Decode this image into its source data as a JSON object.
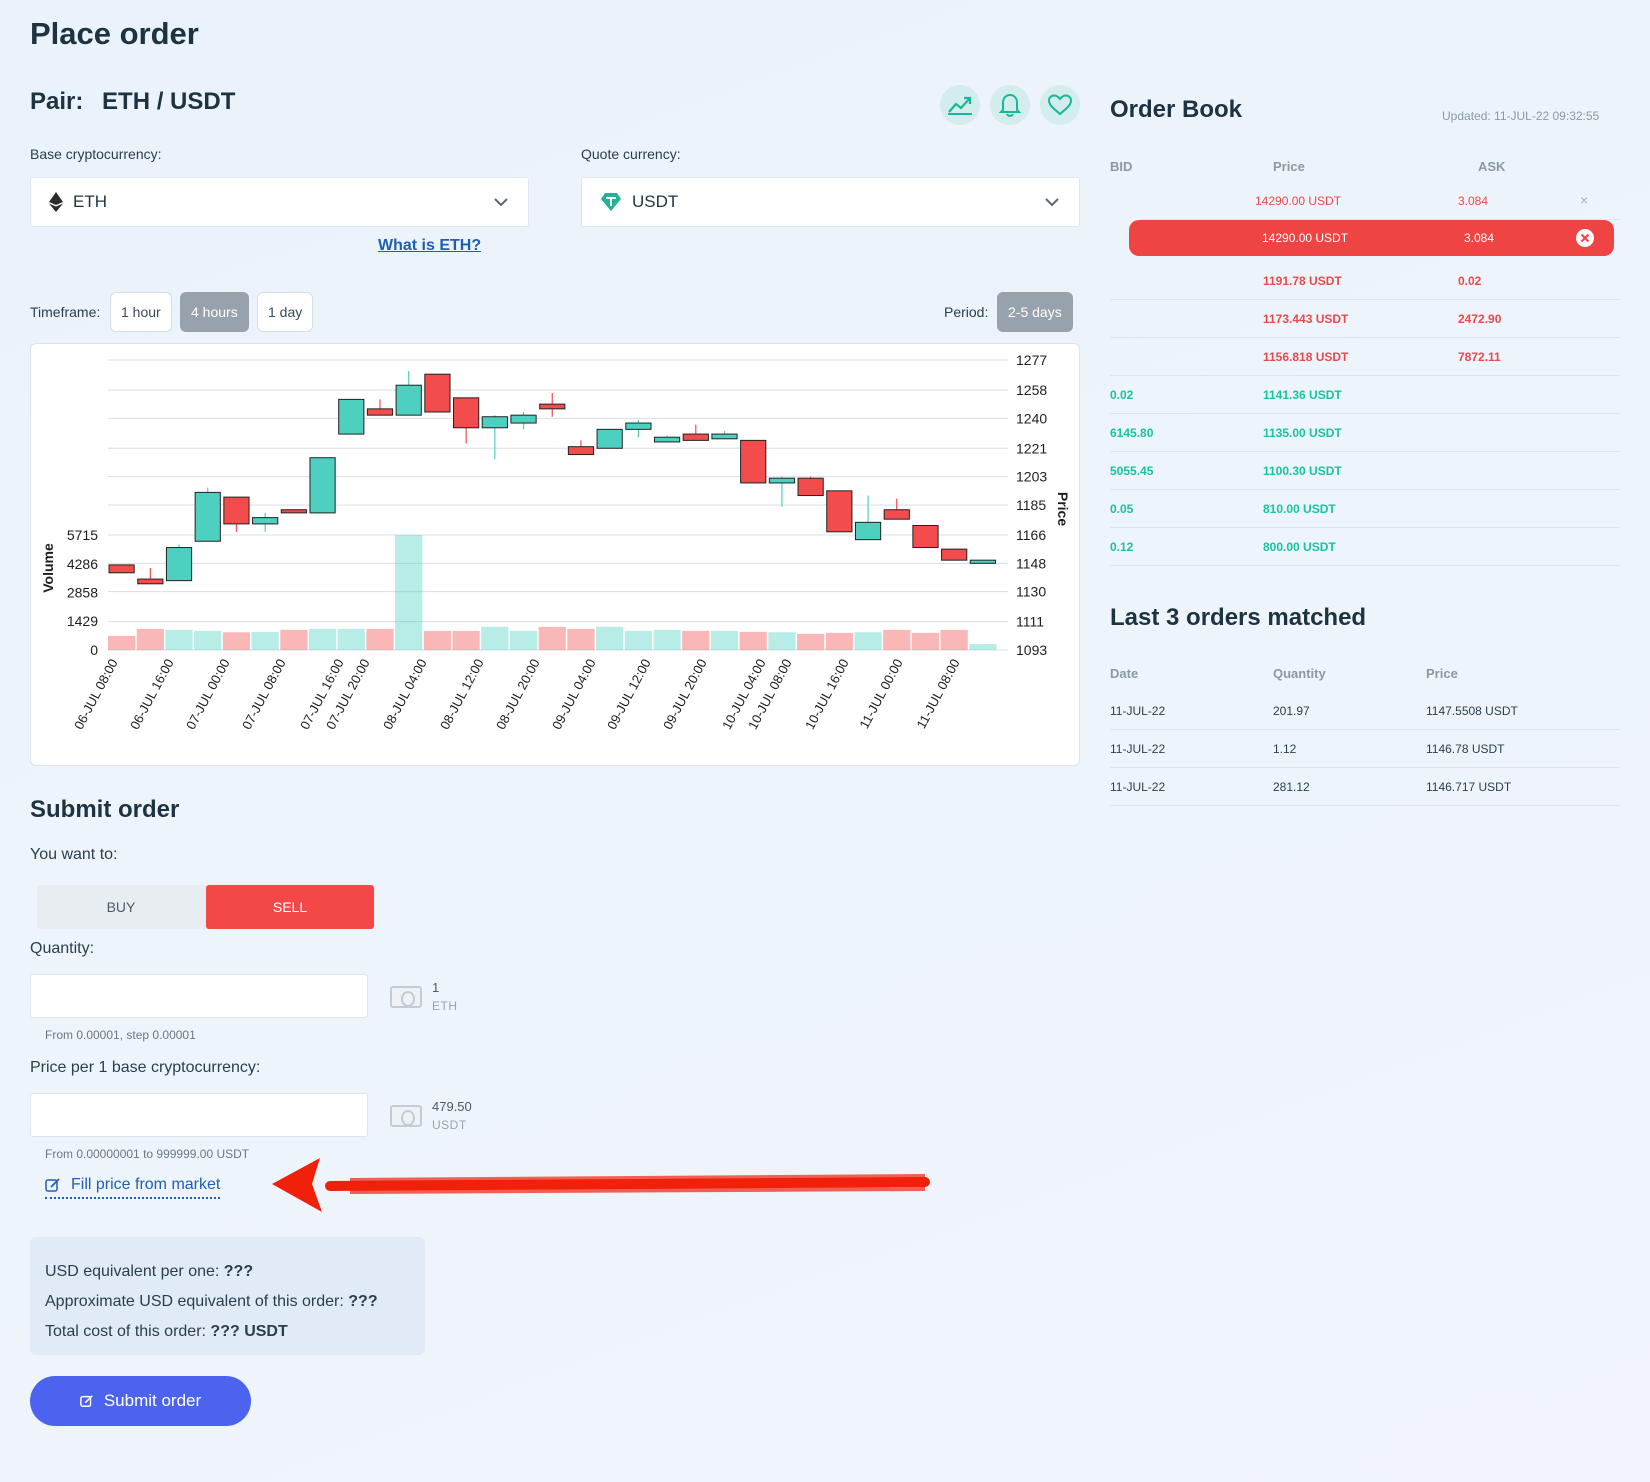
{
  "page": {
    "title": "Place order"
  },
  "pair": {
    "label": "Pair:",
    "value": "ETH / USDT"
  },
  "icons": {
    "chart": "chart-trend-icon",
    "alert": "bell-icon",
    "favorite": "heart-icon"
  },
  "base": {
    "label": "Base cryptocurrency:",
    "value": "ETH",
    "icon": "ethereum-icon",
    "info_link": "What is ETH?"
  },
  "quote": {
    "label": "Quote currency:",
    "value": "USDT",
    "icon": "tether-icon"
  },
  "timeframe": {
    "label": "Timeframe:",
    "options": [
      "1 hour",
      "4 hours",
      "1 day"
    ],
    "selected": "4 hours"
  },
  "period": {
    "label": "Period:",
    "value": "2-5 days"
  },
  "chart_data": {
    "type": "candlestick",
    "title": "",
    "xlabel": "",
    "ylabel_price": "Price",
    "ylabel_volume": "Volume",
    "price_ticks": [
      1277,
      1258,
      1240,
      1221,
      1203,
      1185,
      1166,
      1148,
      1130,
      1111,
      1093
    ],
    "volume_ticks": [
      5715,
      4286,
      2858,
      1429,
      0
    ],
    "ylim_price": [
      1093,
      1277
    ],
    "ylim_volume": [
      0,
      5715
    ],
    "x_tick_labels": [
      "06-JUL 08:00",
      "06-JUL 16:00",
      "07-JUL 00:00",
      "07-JUL 08:00",
      "07-JUL 16:00",
      "07-JUL 20:00",
      "08-JUL 04:00",
      "08-JUL 12:00",
      "08-JUL 20:00",
      "09-JUL 04:00",
      "09-JUL 12:00",
      "09-JUL 20:00",
      "10-JUL 04:00",
      "10-JUL 08:00",
      "10-JUL 16:00",
      "11-JUL 00:00",
      "11-JUL 08:00"
    ],
    "candles": [
      {
        "open": 1147,
        "close": 1142,
        "high": 1147,
        "low": 1142,
        "volume": 700,
        "dir": "down"
      },
      {
        "open": 1138,
        "close": 1135,
        "high": 1145,
        "low": 1135,
        "volume": 1050,
        "dir": "down"
      },
      {
        "open": 1137,
        "close": 1158,
        "high": 1160,
        "low": 1137,
        "volume": 1000,
        "dir": "up"
      },
      {
        "open": 1162,
        "close": 1193,
        "high": 1196,
        "low": 1162,
        "volume": 950,
        "dir": "up"
      },
      {
        "open": 1190,
        "close": 1173,
        "high": 1190,
        "low": 1168,
        "volume": 880,
        "dir": "down"
      },
      {
        "open": 1173,
        "close": 1177,
        "high": 1180,
        "low": 1168,
        "volume": 900,
        "dir": "up"
      },
      {
        "open": 1182,
        "close": 1180,
        "high": 1182,
        "low": 1180,
        "volume": 1000,
        "dir": "down"
      },
      {
        "open": 1180,
        "close": 1215,
        "high": 1215,
        "low": 1180,
        "volume": 1050,
        "dir": "up"
      },
      {
        "open": 1230,
        "close": 1252,
        "high": 1252,
        "low": 1230,
        "volume": 1050,
        "dir": "up"
      },
      {
        "open": 1246,
        "close": 1242,
        "high": 1252,
        "low": 1242,
        "volume": 1050,
        "dir": "down"
      },
      {
        "open": 1242,
        "close": 1261,
        "high": 1270,
        "low": 1242,
        "volume": 5715,
        "dir": "up"
      },
      {
        "open": 1268,
        "close": 1244,
        "high": 1268,
        "low": 1244,
        "volume": 950,
        "dir": "down"
      },
      {
        "open": 1253,
        "close": 1234,
        "high": 1253,
        "low": 1224,
        "volume": 950,
        "dir": "down"
      },
      {
        "open": 1234,
        "close": 1241,
        "high": 1242,
        "low": 1214,
        "volume": 1150,
        "dir": "up"
      },
      {
        "open": 1237,
        "close": 1242,
        "high": 1244,
        "low": 1233,
        "volume": 950,
        "dir": "up"
      },
      {
        "open": 1249,
        "close": 1246,
        "high": 1256,
        "low": 1241,
        "volume": 1150,
        "dir": "down"
      },
      {
        "open": 1222,
        "close": 1217,
        "high": 1226,
        "low": 1217,
        "volume": 1050,
        "dir": "down"
      },
      {
        "open": 1221,
        "close": 1233,
        "high": 1233,
        "low": 1221,
        "volume": 1150,
        "dir": "up"
      },
      {
        "open": 1233,
        "close": 1237,
        "high": 1239,
        "low": 1228,
        "volume": 950,
        "dir": "up"
      },
      {
        "open": 1225,
        "close": 1228,
        "high": 1229,
        "low": 1225,
        "volume": 1000,
        "dir": "up"
      },
      {
        "open": 1230,
        "close": 1226,
        "high": 1236,
        "low": 1226,
        "volume": 950,
        "dir": "down"
      },
      {
        "open": 1227,
        "close": 1230,
        "high": 1232,
        "low": 1227,
        "volume": 950,
        "dir": "up"
      },
      {
        "open": 1226,
        "close": 1199,
        "high": 1226,
        "low": 1199,
        "volume": 900,
        "dir": "down"
      },
      {
        "open": 1199,
        "close": 1202,
        "high": 1203,
        "low": 1184,
        "volume": 880,
        "dir": "up"
      },
      {
        "open": 1202,
        "close": 1191,
        "high": 1203,
        "low": 1191,
        "volume": 800,
        "dir": "down"
      },
      {
        "open": 1194,
        "close": 1168,
        "high": 1194,
        "low": 1168,
        "volume": 850,
        "dir": "down"
      },
      {
        "open": 1163,
        "close": 1174,
        "high": 1191,
        "low": 1163,
        "volume": 880,
        "dir": "up"
      },
      {
        "open": 1182,
        "close": 1176,
        "high": 1189,
        "low": 1176,
        "volume": 1000,
        "dir": "down"
      },
      {
        "open": 1172,
        "close": 1158,
        "high": 1172,
        "low": 1158,
        "volume": 850,
        "dir": "down"
      },
      {
        "open": 1157,
        "close": 1150,
        "high": 1157,
        "low": 1150,
        "volume": 1000,
        "dir": "down"
      },
      {
        "open": 1148,
        "close": 1150,
        "high": 1150,
        "low": 1148,
        "volume": 300,
        "dir": "up"
      }
    ]
  },
  "order_book": {
    "title": "Order Book",
    "updated": "Updated: 11-JUL-22 09:32:55",
    "headers": {
      "bid": "BID",
      "price": "Price",
      "ask": "ASK"
    },
    "highlight": {
      "price": "14290.00 USDT",
      "ask": "3.084"
    },
    "rows": [
      {
        "bid": "",
        "price": "14290.00 USDT",
        "ask": "3.084",
        "side": "ask",
        "closable": true
      },
      {
        "bid": "",
        "price": "1191.78 USDT",
        "ask": "0.02",
        "side": "ask"
      },
      {
        "bid": "",
        "price": "1173.443 USDT",
        "ask": "2472.90",
        "side": "ask"
      },
      {
        "bid": "",
        "price": "1156.818 USDT",
        "ask": "7872.11",
        "side": "ask"
      },
      {
        "bid": "0.02",
        "price": "1141.36 USDT",
        "ask": "",
        "side": "bid"
      },
      {
        "bid": "6145.80",
        "price": "1135.00 USDT",
        "ask": "",
        "side": "bid"
      },
      {
        "bid": "5055.45",
        "price": "1100.30 USDT",
        "ask": "",
        "side": "bid"
      },
      {
        "bid": "0.05",
        "price": "810.00 USDT",
        "ask": "",
        "side": "bid"
      },
      {
        "bid": "0.12",
        "price": "800.00 USDT",
        "ask": "",
        "side": "bid"
      }
    ]
  },
  "last_orders": {
    "title": "Last 3 orders matched",
    "headers": {
      "date": "Date",
      "quantity": "Quantity",
      "price": "Price"
    },
    "rows": [
      {
        "date": "11-JUL-22",
        "quantity": "201.97",
        "price": "1147.5508 USDT"
      },
      {
        "date": "11-JUL-22",
        "quantity": "1.12",
        "price": "1146.78 USDT"
      },
      {
        "date": "11-JUL-22",
        "quantity": "281.12",
        "price": "1146.717 USDT"
      }
    ]
  },
  "submit": {
    "title": "Submit order",
    "want_label": "You want to:",
    "buy_label": "BUY",
    "sell_label": "SELL",
    "selected": "SELL",
    "quantity_label": "Quantity:",
    "quantity_value": "",
    "quantity_side_value": "1",
    "quantity_side_unit": "ETH",
    "quantity_hint": "From 0.00001, step 0.00001",
    "price_label": "Price per 1 base cryptocurrency:",
    "price_value": "",
    "price_side_value": "479.50",
    "price_side_unit": "USDT",
    "price_hint": "From 0.00000001 to 999999.00 USDT",
    "fill_link": "Fill price from market",
    "info": {
      "usd_per_one_label": "USD equivalent per one:",
      "usd_per_one_value": "???",
      "approx_label": "Approximate USD equivalent of this order:",
      "approx_value": "???",
      "total_label": "Total cost of this order:",
      "total_value": "??? USDT"
    },
    "button": "Submit order"
  },
  "colors": {
    "up": "#4dd0c0",
    "down": "#f24c4c",
    "accent": "#4b63ef",
    "annotation_arrow": "#f0200a"
  }
}
